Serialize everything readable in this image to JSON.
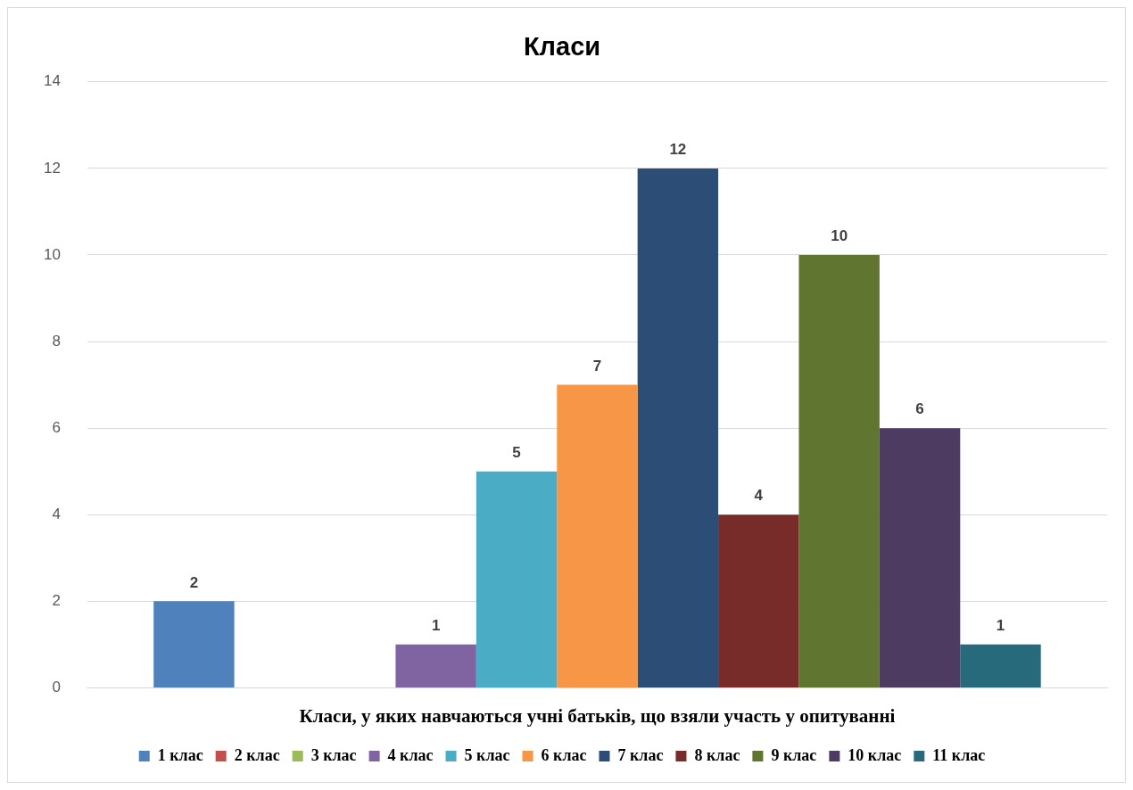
{
  "chart_data": {
    "type": "bar",
    "title": "Класи",
    "xlabel": "Класи, у яких навчаються учні батьків, що взяли участь у опитуванні",
    "categories": [
      null
    ],
    "series": [
      {
        "name": "1 клас",
        "color": "#4f81bd",
        "values": [
          2
        ],
        "value_labels": [
          "2"
        ]
      },
      {
        "name": "2 клас",
        "color": "#c0504d",
        "values": [
          0
        ],
        "value_labels": [
          null
        ]
      },
      {
        "name": "3 клас",
        "color": "#9bbb59",
        "values": [
          0
        ],
        "value_labels": [
          null
        ]
      },
      {
        "name": "4 клас",
        "color": "#8064a2",
        "values": [
          1
        ],
        "value_labels": [
          "1"
        ]
      },
      {
        "name": "5 клас",
        "color": "#4bacc6",
        "values": [
          5
        ],
        "value_labels": [
          "5"
        ]
      },
      {
        "name": "6 клас",
        "color": "#f79646",
        "values": [
          7
        ],
        "value_labels": [
          "7"
        ]
      },
      {
        "name": "7 клас",
        "color": "#2c4d75",
        "values": [
          12
        ],
        "value_labels": [
          "12"
        ]
      },
      {
        "name": "8 клас",
        "color": "#772c2a",
        "values": [
          4
        ],
        "value_labels": [
          "4"
        ]
      },
      {
        "name": "9 клас",
        "color": "#5f7530",
        "values": [
          10
        ],
        "value_labels": [
          "10"
        ]
      },
      {
        "name": "10 клас",
        "color": "#4d3b62",
        "values": [
          6
        ],
        "value_labels": [
          "6"
        ]
      },
      {
        "name": "11 клас",
        "color": "#276a7c",
        "values": [
          1
        ],
        "value_labels": [
          "1"
        ]
      }
    ],
    "ylim": [
      0,
      14
    ],
    "yticks": [
      0,
      2,
      4,
      6,
      8,
      10,
      12,
      14
    ],
    "grid": "y",
    "legend": "bottom"
  }
}
